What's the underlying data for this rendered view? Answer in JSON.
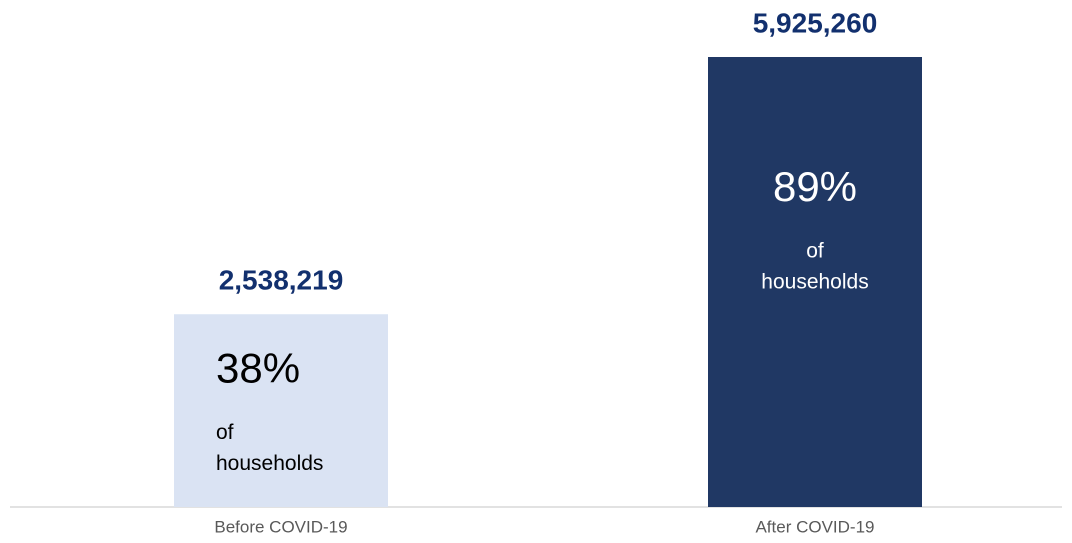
{
  "chart_data": {
    "type": "bar",
    "categories": [
      "Before COVID-19",
      "After COVID-19"
    ],
    "values": [
      2538219,
      5925260
    ],
    "value_labels": [
      "2,538,219",
      "5,925,260"
    ],
    "colors": [
      "#dae3f3",
      "#203864"
    ],
    "shares": [
      38,
      89
    ],
    "share_labels": [
      "38%",
      "89%"
    ],
    "share_caption": [
      "of",
      "households"
    ],
    "ylim": [
      0,
      6000000
    ]
  }
}
